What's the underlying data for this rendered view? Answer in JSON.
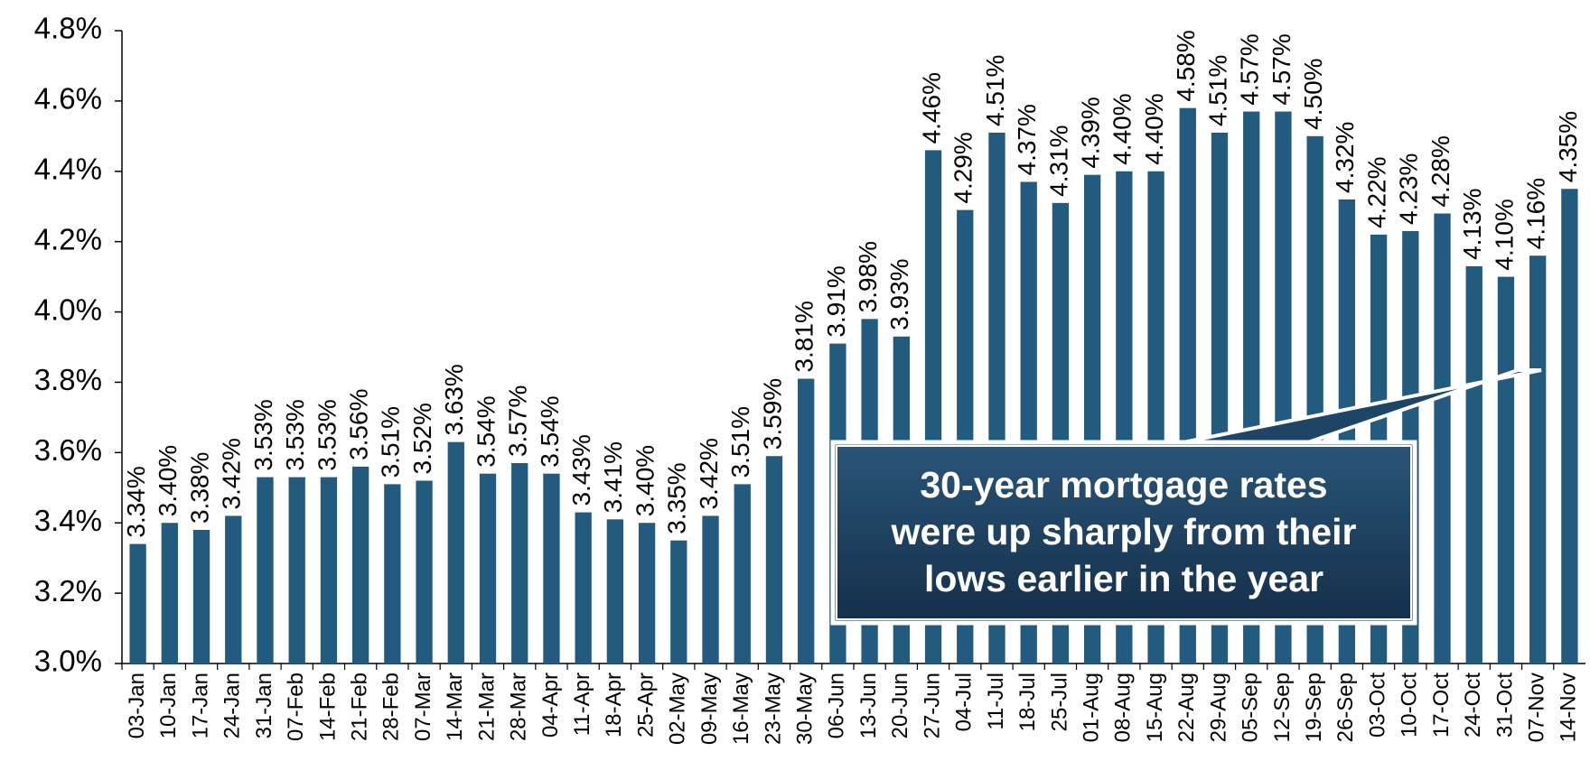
{
  "chart_data": {
    "type": "bar",
    "categories": [
      "03-Jan",
      "10-Jan",
      "17-Jan",
      "24-Jan",
      "31-Jan",
      "07-Feb",
      "14-Feb",
      "21-Feb",
      "28-Feb",
      "07-Mar",
      "14-Mar",
      "21-Mar",
      "28-Mar",
      "04-Apr",
      "11-Apr",
      "18-Apr",
      "25-Apr",
      "02-May",
      "09-May",
      "16-May",
      "23-May",
      "30-May",
      "06-Jun",
      "13-Jun",
      "20-Jun",
      "27-Jun",
      "04-Jul",
      "11-Jul",
      "18-Jul",
      "25-Jul",
      "01-Aug",
      "08-Aug",
      "15-Aug",
      "22-Aug",
      "29-Aug",
      "05-Sep",
      "12-Sep",
      "19-Sep",
      "26-Sep",
      "03-Oct",
      "10-Oct",
      "17-Oct",
      "24-Oct",
      "31-Oct",
      "07-Nov",
      "14-Nov"
    ],
    "values": [
      3.34,
      3.4,
      3.38,
      3.42,
      3.53,
      3.53,
      3.53,
      3.56,
      3.51,
      3.52,
      3.63,
      3.54,
      3.57,
      3.54,
      3.43,
      3.41,
      3.4,
      3.35,
      3.42,
      3.51,
      3.59,
      3.81,
      3.91,
      3.98,
      3.93,
      4.46,
      4.29,
      4.51,
      4.37,
      4.31,
      4.39,
      4.4,
      4.4,
      4.58,
      4.51,
      4.57,
      4.57,
      4.5,
      4.32,
      4.22,
      4.23,
      4.28,
      4.13,
      4.1,
      4.16,
      4.35
    ],
    "value_labels": [
      "3.34%",
      "3.40%",
      "3.38%",
      "3.42%",
      "3.53%",
      "3.53%",
      "3.53%",
      "3.56%",
      "3.51%",
      "3.52%",
      "3.63%",
      "3.54%",
      "3.57%",
      "3.54%",
      "3.43%",
      "3.41%",
      "3.40%",
      "3.35%",
      "3.42%",
      "3.51%",
      "3.59%",
      "3.81%",
      "3.91%",
      "3.98%",
      "3.93%",
      "4.46%",
      "4.29%",
      "4.51%",
      "4.37%",
      "4.31%",
      "4.39%",
      "4.40%",
      "4.40%",
      "4.58%",
      "4.51%",
      "4.57%",
      "4.57%",
      "4.50%",
      "4.32%",
      "4.22%",
      "4.23%",
      "4.28%",
      "4.13%",
      "4.10%",
      "4.16%",
      "4.35%"
    ],
    "color": "#235b7e",
    "ylim": [
      3.0,
      4.8
    ],
    "yticks": [
      {
        "value": 3.0,
        "label": "3.0%"
      },
      {
        "value": 3.2,
        "label": "3.2%"
      },
      {
        "value": 3.4,
        "label": "3.4%"
      },
      {
        "value": 3.6,
        "label": "3.6%"
      },
      {
        "value": 3.8,
        "label": "3.8%"
      },
      {
        "value": 4.0,
        "label": "4.0%"
      },
      {
        "value": 4.2,
        "label": "4.2%"
      },
      {
        "value": 4.4,
        "label": "4.4%"
      },
      {
        "value": 4.6,
        "label": "4.6%"
      },
      {
        "value": 4.8,
        "label": "4.8%"
      }
    ],
    "annotation": [
      "30-year mortgage rates",
      "were up sharply from their",
      "lows earlier in the year"
    ]
  }
}
